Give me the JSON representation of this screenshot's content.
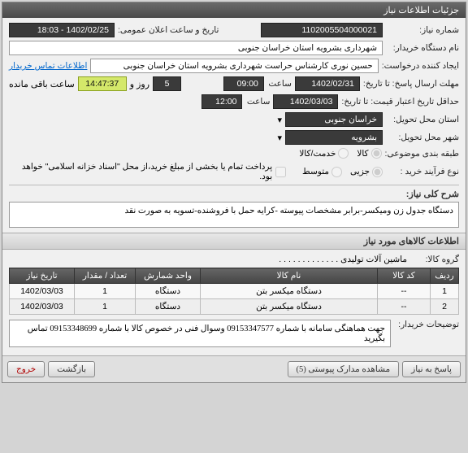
{
  "header": {
    "title": "جزئیات اطلاعات نیاز"
  },
  "fields": {
    "need_no_label": "شماره نیاز:",
    "need_no": "1102005504000021",
    "announce_label": "تاریخ و ساعت اعلان عمومی:",
    "announce_val": "1402/02/25 - 18:03",
    "buyer_label": "نام دستگاه خریدار:",
    "buyer_val": "شهرداری بشرویه استان خراسان جنوبی",
    "creator_label": "ایجاد کننده درخواست:",
    "creator_val": "حسین نوری کارشناس حراست شهرداری بشرویه استان خراسان جنوبی",
    "contact_link": "اطلاعات تماس خریدار",
    "deadline_label": "مهلت ارسال پاسخ: تا تاریخ:",
    "deadline_date": "1402/02/31",
    "time_label": "ساعت",
    "deadline_time": "09:00",
    "days_remaining": "5",
    "days_text": "روز و",
    "time_remaining": "14:47:37",
    "remaining_text": "ساعت باقی مانده",
    "validity_label": "حداقل تاریخ اعتبار قیمت: تا تاریخ:",
    "validity_date": "1402/03/03",
    "validity_time": "12:00",
    "province_label": "استان محل تحویل:",
    "province_val": "خراسان جنوبی",
    "city_label": "شهر محل تحویل:",
    "city_val": "بشرویه",
    "category_label": "طبقه بندی موضوعی:",
    "cat_goods": "کالا",
    "cat_service": "خدمت/کالا",
    "process_label": "نوع فرآیند خرید :",
    "proc_partial": "جزیی",
    "proc_medium": "متوسط",
    "payment_check": "پرداخت تمام یا بخشی از مبلغ خرید،از محل \"اسناد خزانه اسلامی\" خواهد بود.",
    "desc_label": "شرح کلی نیاز:",
    "desc_val": "دستگاه جدول زن ومیکسر-برابر مشخصات پیوسته -کرایه حمل با فروشنده-تسویه به صورت نقد",
    "items_header": "اطلاعات کالاهای مورد نیاز",
    "group_label": "گروه کالا:",
    "group_val": "ماشین آلات تولیدی . . . . . . . . . . . . .",
    "notes_label": "توضیحات خریدار:",
    "notes_val": "جهت هماهنگی سامانه با شماره 09153347577 وسوال فنی در خصوص کالا با شماره 09153348699 تماس بگیرید"
  },
  "table": {
    "cols": [
      "ردیف",
      "کد کالا",
      "نام کالا",
      "واحد شمارش",
      "تعداد / مقدار",
      "تاریخ نیاز"
    ],
    "rows": [
      [
        "1",
        "--",
        "دستگاه میکسر بتن",
        "دستگاه",
        "1",
        "1402/03/03"
      ],
      [
        "2",
        "--",
        "دستگاه میکسر بتن",
        "دستگاه",
        "1",
        "1402/03/03"
      ]
    ],
    "col_widths": [
      "35px",
      "65px",
      "auto",
      "80px",
      "75px",
      "80px"
    ]
  },
  "buttons": {
    "reply": "پاسخ به نیاز",
    "attachments": "مشاهده مدارک پیوستی (5)",
    "back": "بازگشت",
    "exit": "خروج"
  },
  "colors": {
    "header_bg": "#555555",
    "field_dark": "#3a3a3a",
    "field_yellow": "#d4e86a"
  }
}
